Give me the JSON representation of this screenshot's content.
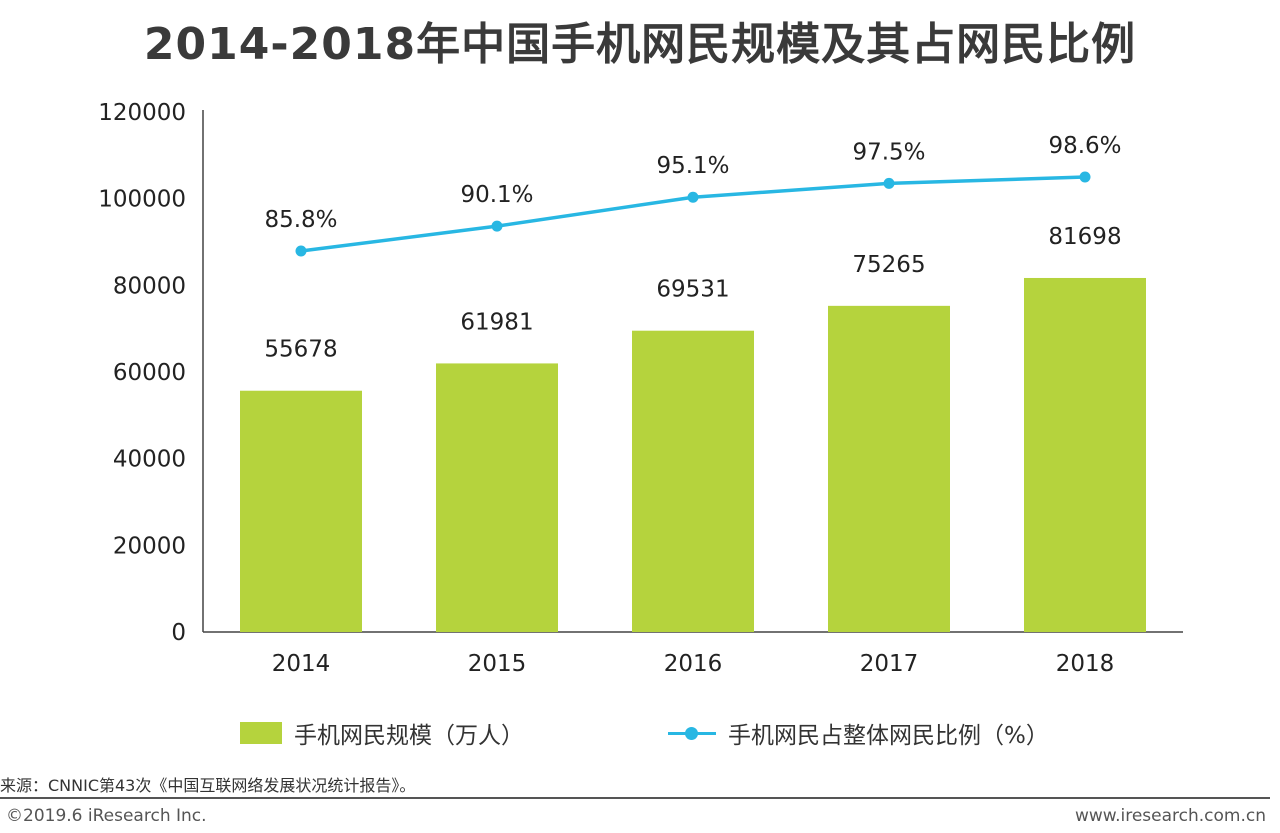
{
  "title": "2014-2018年中国手机网民规模及其占网民比例",
  "colors": {
    "bar": "#b5d33d",
    "line": "#28b7e3",
    "axis": "#444444",
    "text": "#222222"
  },
  "chart_data": {
    "type": "bar",
    "categories": [
      "2014",
      "2015",
      "2016",
      "2017",
      "2018"
    ],
    "ylim": [
      0,
      120000
    ],
    "y_ticks": [
      "0",
      "20000",
      "40000",
      "60000",
      "80000",
      "100000",
      "120000"
    ],
    "grid": false,
    "series": [
      {
        "name": "手机网民规模（万人）",
        "kind": "bar",
        "values": [
          55678,
          61981,
          69531,
          75265,
          81698
        ],
        "labels": [
          "55678",
          "61981",
          "69531",
          "75265",
          "81698"
        ]
      },
      {
        "name": "手机网民占整体网民比例（%）",
        "kind": "line",
        "values": [
          85.8,
          90.1,
          95.1,
          97.5,
          98.6
        ],
        "labels": [
          "85.8%",
          "90.1%",
          "95.1%",
          "97.5%",
          "98.6%"
        ]
      }
    ],
    "legend_placement": "bottom"
  },
  "legend": {
    "bar_label": "手机网民规模（万人）",
    "line_label": "手机网民占整体网民比例（%）"
  },
  "footer": {
    "source": "来源：CNNIC第43次《中国互联网络发展状况统计报告》。",
    "copyright": "©2019.6 iResearch Inc.",
    "website": "www.iresearch.com.cn"
  }
}
